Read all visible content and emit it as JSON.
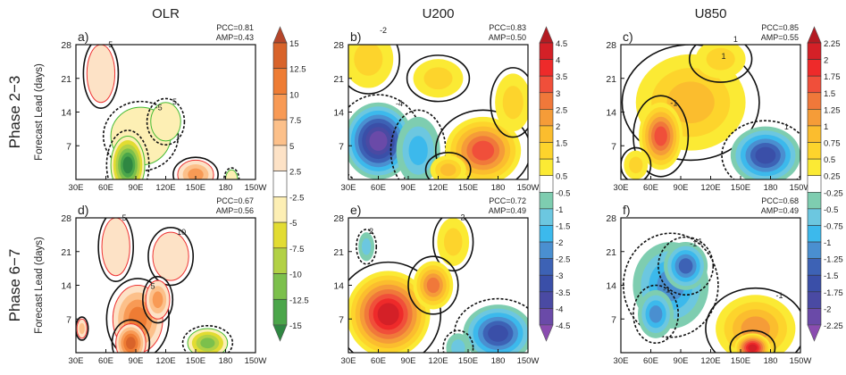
{
  "column_titles": [
    "OLR",
    "U200",
    "U850"
  ],
  "row_titles": [
    "Phase  2−3",
    "Phase  6−7"
  ],
  "ylabel": "Forecast Lead (days)",
  "chart_data": {
    "type": "heatmap",
    "x_ticks": [
      "30E",
      "60E",
      "90E",
      "120E",
      "150E",
      "180",
      "150W"
    ],
    "x_tick_values": [
      30,
      60,
      90,
      120,
      150,
      180,
      210
    ],
    "y_ticks": [
      "7",
      "14",
      "21",
      "28"
    ],
    "y_tick_values": [
      7,
      14,
      21,
      28
    ],
    "xlim": [
      30,
      210
    ],
    "ylim": [
      0,
      28
    ],
    "colorbars": [
      {
        "levels": [
          "15",
          "12.5",
          "10",
          "7.5",
          "5",
          "2.5",
          "-2.5",
          "-5",
          "-7.5",
          "-10",
          "-12.5",
          "-15"
        ],
        "colors": [
          "#b5462a",
          "#d8632a",
          "#ee7c34",
          "#f89a55",
          "#fcc08a",
          "#fde2c6",
          "#ffffff",
          "#fdefb4",
          "#e2dc32",
          "#b2d145",
          "#7cc04c",
          "#4ba64a",
          "#2f8742"
        ]
      },
      {
        "levels": [
          "4.5",
          "4",
          "3.5",
          "3",
          "2.5",
          "2",
          "1.5",
          "1",
          "0.5",
          "-0.5",
          "-1",
          "-1.5",
          "-2",
          "-2.5",
          "-3",
          "-3.5",
          "-4",
          "-4.5"
        ],
        "colors": [
          "#b31b22",
          "#d42027",
          "#ee2a2a",
          "#f04f3a",
          "#f0783a",
          "#f59c38",
          "#fbbd2e",
          "#fdd42c",
          "#fbea34",
          "#ffffff",
          "#7ecdb0",
          "#6cc7e0",
          "#3cb9ec",
          "#4a8fd0",
          "#3d62b5",
          "#3a4fa8",
          "#4a4aa3",
          "#6a4aa8",
          "#8a4cb0"
        ]
      },
      {
        "levels": [
          "2.25",
          "2",
          "1.75",
          "1.5",
          "1.25",
          "1",
          "0.75",
          "0.5",
          "0.25",
          "-0.25",
          "-0.5",
          "-0.75",
          "-1",
          "-1.25",
          "-1.5",
          "-1.75",
          "-2",
          "-2.25"
        ],
        "colors": [
          "#b31b22",
          "#d42027",
          "#ee2a2a",
          "#f04f3a",
          "#f0783a",
          "#f59c38",
          "#fbbd2e",
          "#fdd42c",
          "#fbea34",
          "#ffffff",
          "#7ecdb0",
          "#6cc7e0",
          "#3cb9ec",
          "#4a8fd0",
          "#3d62b5",
          "#3a4fa8",
          "#4a4aa3",
          "#6a4aa8",
          "#8a4cb0"
        ]
      }
    ],
    "panels": [
      {
        "label": "a)",
        "variable": "OLR",
        "phase": "2-3",
        "pcc": "PCC=0.81",
        "amp": "AMP=0.43",
        "contour_labels": [
          "-5",
          "-5",
          "5"
        ],
        "features": [
          {
            "lon": 55,
            "lead": 22,
            "rlon": 14,
            "rlead": 6,
            "value": 3
          },
          {
            "lon": 95,
            "lead": 9,
            "rlon": 30,
            "rlead": 6,
            "value": -4
          },
          {
            "lon": 120,
            "lead": 12,
            "rlon": 15,
            "rlead": 4,
            "value": -4
          },
          {
            "lon": 82,
            "lead": 3,
            "rlon": 17,
            "rlead": 6,
            "value": -15
          },
          {
            "lon": 150,
            "lead": 1,
            "rlon": 18,
            "rlead": 3,
            "value": 9
          },
          {
            "lon": 186,
            "lead": 0,
            "rlon": 6,
            "rlead": 2,
            "value": -4
          }
        ]
      },
      {
        "label": "b)",
        "variable": "U200",
        "phase": "2-3",
        "pcc": "PCC=0.83",
        "amp": "AMP=0.50",
        "contour_labels": [
          "-2",
          "-4"
        ],
        "features": [
          {
            "lon": 50,
            "lead": 25,
            "rlon": 25,
            "rlead": 6,
            "value": 1.2
          },
          {
            "lon": 60,
            "lead": 8,
            "rlon": 35,
            "rlead": 8,
            "value": -4.2
          },
          {
            "lon": 100,
            "lead": 6,
            "rlon": 22,
            "rlead": 7,
            "value": -1.8
          },
          {
            "lon": 120,
            "lead": 21,
            "rlon": 25,
            "rlead": 4,
            "value": 1.0
          },
          {
            "lon": 165,
            "lead": 6,
            "rlon": 38,
            "rlead": 7,
            "value": 3.2
          },
          {
            "lon": 130,
            "lead": 2,
            "rlon": 18,
            "rlead": 3,
            "value": 1.6
          },
          {
            "lon": 195,
            "lead": 16,
            "rlon": 18,
            "rlead": 6,
            "value": 1.2
          }
        ]
      },
      {
        "label": "c)",
        "variable": "U850",
        "phase": "2-3",
        "pcc": "PCC=0.85",
        "amp": "AMP=0.55",
        "contour_labels": [
          "1",
          "1",
          "-1",
          "1"
        ],
        "features": [
          {
            "lon": 100,
            "lead": 16,
            "rlon": 55,
            "rlead": 10,
            "value": 0.9
          },
          {
            "lon": 130,
            "lead": 25,
            "rlon": 25,
            "rlead": 4,
            "value": 0.6
          },
          {
            "lon": 70,
            "lead": 9,
            "rlon": 22,
            "rlead": 7,
            "value": 1.6
          },
          {
            "lon": 175,
            "lead": 5,
            "rlon": 35,
            "rlead": 6,
            "value": -1.6
          },
          {
            "lon": 45,
            "lead": 3,
            "rlon": 12,
            "rlead": 3,
            "value": 0.6
          }
        ]
      },
      {
        "label": "d)",
        "variable": "OLR",
        "phase": "6-7",
        "pcc": "PCC=0.67",
        "amp": "AMP=0.56",
        "contour_labels": [
          "5",
          "10",
          "5"
        ],
        "features": [
          {
            "lon": 70,
            "lead": 22,
            "rlon": 14,
            "rlead": 6,
            "value": 3
          },
          {
            "lon": 125,
            "lead": 20,
            "rlon": 18,
            "rlead": 5,
            "value": 3
          },
          {
            "lon": 92,
            "lead": 7,
            "rlon": 25,
            "rlead": 7,
            "value": 10
          },
          {
            "lon": 85,
            "lead": 2,
            "rlon": 15,
            "rlead": 4,
            "value": 14
          },
          {
            "lon": 112,
            "lead": 11,
            "rlon": 12,
            "rlead": 4,
            "value": 9
          },
          {
            "lon": 162,
            "lead": 2,
            "rlon": 20,
            "rlead": 3,
            "value": -11
          },
          {
            "lon": 36,
            "lead": 5,
            "rlon": 5,
            "rlead": 2,
            "value": 6
          }
        ]
      },
      {
        "label": "e)",
        "variable": "U200",
        "phase": "6-7",
        "pcc": "PCC=0.72",
        "amp": "AMP=0.49",
        "contour_labels": [
          "2",
          "2"
        ],
        "features": [
          {
            "lon": 48,
            "lead": 22,
            "rlon": 8,
            "rlead": 3,
            "value": -1.2
          },
          {
            "lon": 135,
            "lead": 23,
            "rlon": 16,
            "rlead": 5,
            "value": 1.2
          },
          {
            "lon": 70,
            "lead": 8,
            "rlon": 42,
            "rlead": 9,
            "value": 4.3
          },
          {
            "lon": 115,
            "lead": 14,
            "rlon": 20,
            "rlead": 5,
            "value": 2.5
          },
          {
            "lon": 180,
            "lead": 4,
            "rlon": 35,
            "rlead": 6,
            "value": -3.2
          },
          {
            "lon": 140,
            "lead": 1,
            "rlon": 12,
            "rlead": 3,
            "value": -1.2
          }
        ]
      },
      {
        "label": "f)",
        "variable": "U850",
        "phase": "6-7",
        "pcc": "PCC=0.68",
        "amp": "AMP=0.49",
        "contour_labels": [
          "-1",
          "-1",
          "-1",
          "-1"
        ],
        "features": [
          {
            "lon": 80,
            "lead": 14,
            "rlon": 38,
            "rlead": 9,
            "value": -1.1
          },
          {
            "lon": 95,
            "lead": 18,
            "rlon": 22,
            "rlead": 5,
            "value": -1.4
          },
          {
            "lon": 65,
            "lead": 8,
            "rlon": 18,
            "rlead": 5,
            "value": -1.2
          },
          {
            "lon": 165,
            "lead": 5,
            "rlon": 40,
            "rlead": 7,
            "value": 1.1
          },
          {
            "lon": 162,
            "lead": 1,
            "rlon": 18,
            "rlead": 3,
            "value": 2.0
          }
        ]
      }
    ]
  }
}
